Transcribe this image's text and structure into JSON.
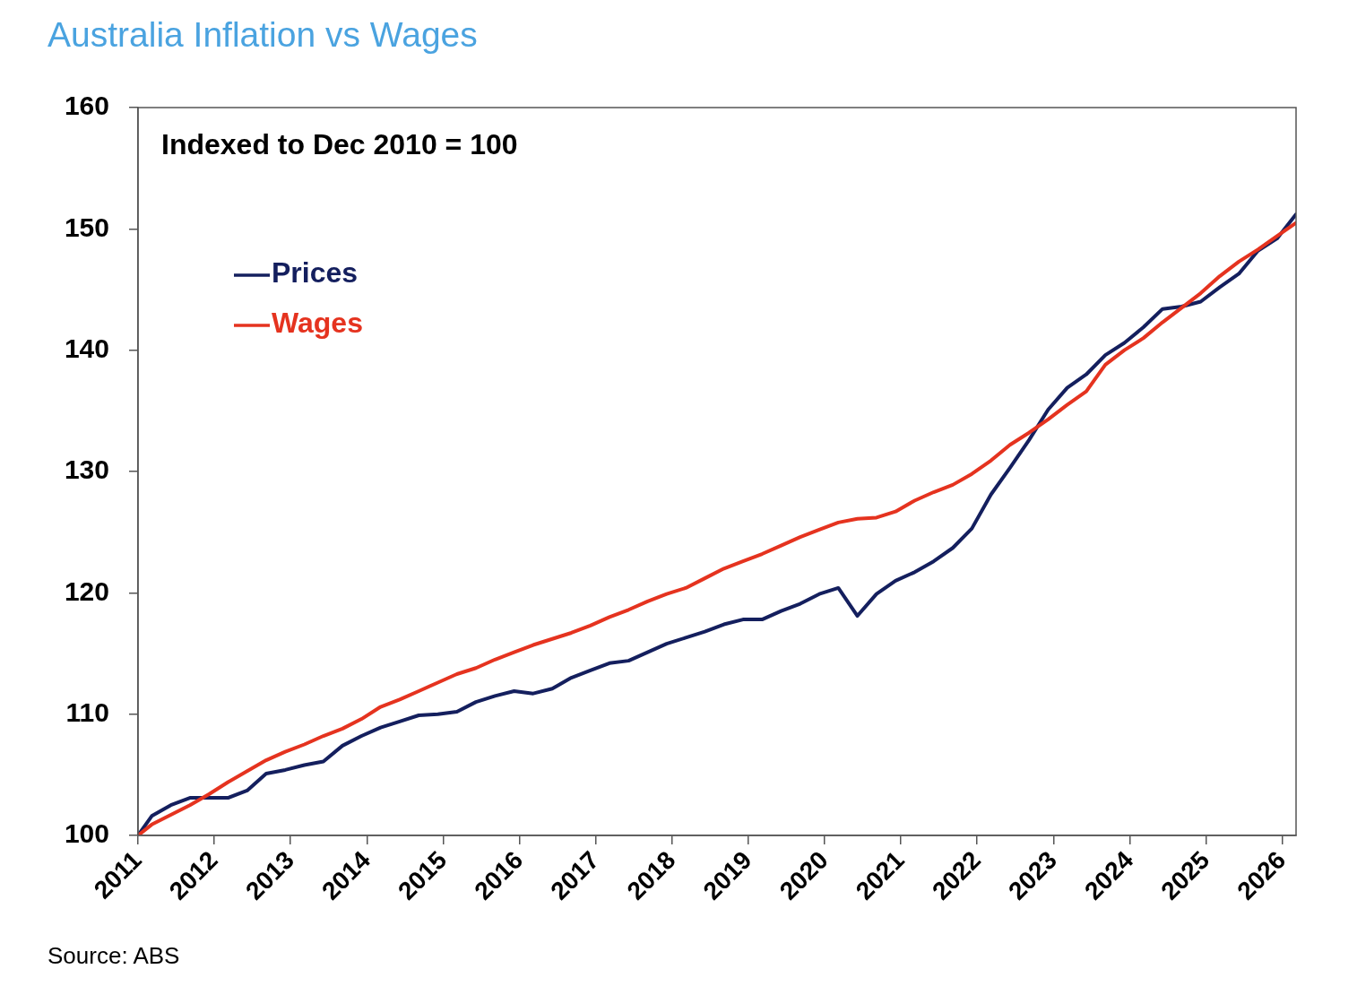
{
  "chart_data": {
    "type": "line",
    "title": "Australia Inflation vs Wages",
    "annotations": [
      "Indexed to Dec 2010 = 100",
      "Source: ABS"
    ],
    "x": [
      2011,
      2011.18,
      2011.43,
      2011.68,
      2011.93,
      2012.18,
      2012.43,
      2012.68,
      2012.93,
      2013.18,
      2013.43,
      2013.68,
      2013.93,
      2014.18,
      2014.43,
      2014.68,
      2014.93,
      2015.18,
      2015.43,
      2015.68,
      2015.93,
      2016.18,
      2016.43,
      2016.68,
      2016.93,
      2017.18,
      2017.43,
      2017.68,
      2017.93,
      2018.18,
      2018.43,
      2018.68,
      2018.93,
      2019.18,
      2019.43,
      2019.68,
      2019.93,
      2020.18,
      2020.43,
      2020.68,
      2020.93,
      2021.18,
      2021.43,
      2021.68,
      2021.93,
      2022.18,
      2022.43,
      2022.68,
      2022.93,
      2023.18,
      2023.43,
      2023.68,
      2023.93,
      2024.18,
      2024.43,
      2024.68,
      2024.93,
      2025.18,
      2025.43,
      2025.68,
      2025.93,
      2026.18
    ],
    "series": [
      {
        "name": "Prices",
        "color": "#141f5e",
        "values": [
          100,
          101.6,
          102.5,
          103.1,
          103.1,
          103.1,
          103.7,
          105.1,
          105.4,
          105.8,
          106.1,
          107.4,
          108.2,
          108.9,
          109.4,
          109.9,
          110.0,
          110.2,
          111.0,
          111.5,
          111.9,
          111.7,
          112.1,
          113.0,
          113.6,
          114.2,
          114.4,
          115.1,
          115.8,
          116.3,
          116.8,
          117.4,
          117.8,
          117.8,
          118.5,
          119.1,
          119.9,
          120.4,
          118.1,
          119.9,
          121.0,
          121.7,
          122.6,
          123.7,
          125.3,
          128.1,
          130.3,
          132.6,
          135.1,
          136.9,
          138.0,
          139.6,
          140.6,
          141.9,
          143.4,
          143.6,
          144.0,
          145.2,
          146.3,
          148.2,
          149.2,
          151.2
        ]
      },
      {
        "name": "Wages",
        "color": "#e5331f",
        "values": [
          100,
          100.9,
          101.7,
          102.5,
          103.4,
          104.4,
          105.3,
          106.2,
          106.9,
          107.5,
          108.2,
          108.8,
          109.6,
          110.6,
          111.2,
          111.9,
          112.6,
          113.3,
          113.8,
          114.5,
          115.1,
          115.7,
          116.2,
          116.7,
          117.3,
          118.0,
          118.6,
          119.3,
          119.9,
          120.4,
          121.2,
          122.0,
          122.6,
          123.2,
          123.9,
          124.6,
          125.2,
          125.8,
          126.1,
          126.2,
          126.7,
          127.6,
          128.3,
          128.9,
          129.8,
          130.9,
          132.2,
          133.2,
          134.3,
          135.5,
          136.6,
          138.8,
          140.0,
          141.0,
          142.3,
          143.5,
          144.7,
          146.1,
          147.3,
          148.3,
          149.4,
          150.5
        ]
      }
    ],
    "xlim": [
      2011,
      2026.18
    ],
    "xticks": [
      2011,
      2012,
      2013,
      2014,
      2015,
      2016,
      2017,
      2018,
      2019,
      2020,
      2021,
      2022,
      2023,
      2024,
      2025,
      2026
    ],
    "ylim": [
      100,
      160
    ],
    "yticks": [
      100,
      110,
      120,
      130,
      140,
      150,
      160
    ],
    "grid": false,
    "legend": "top left"
  }
}
